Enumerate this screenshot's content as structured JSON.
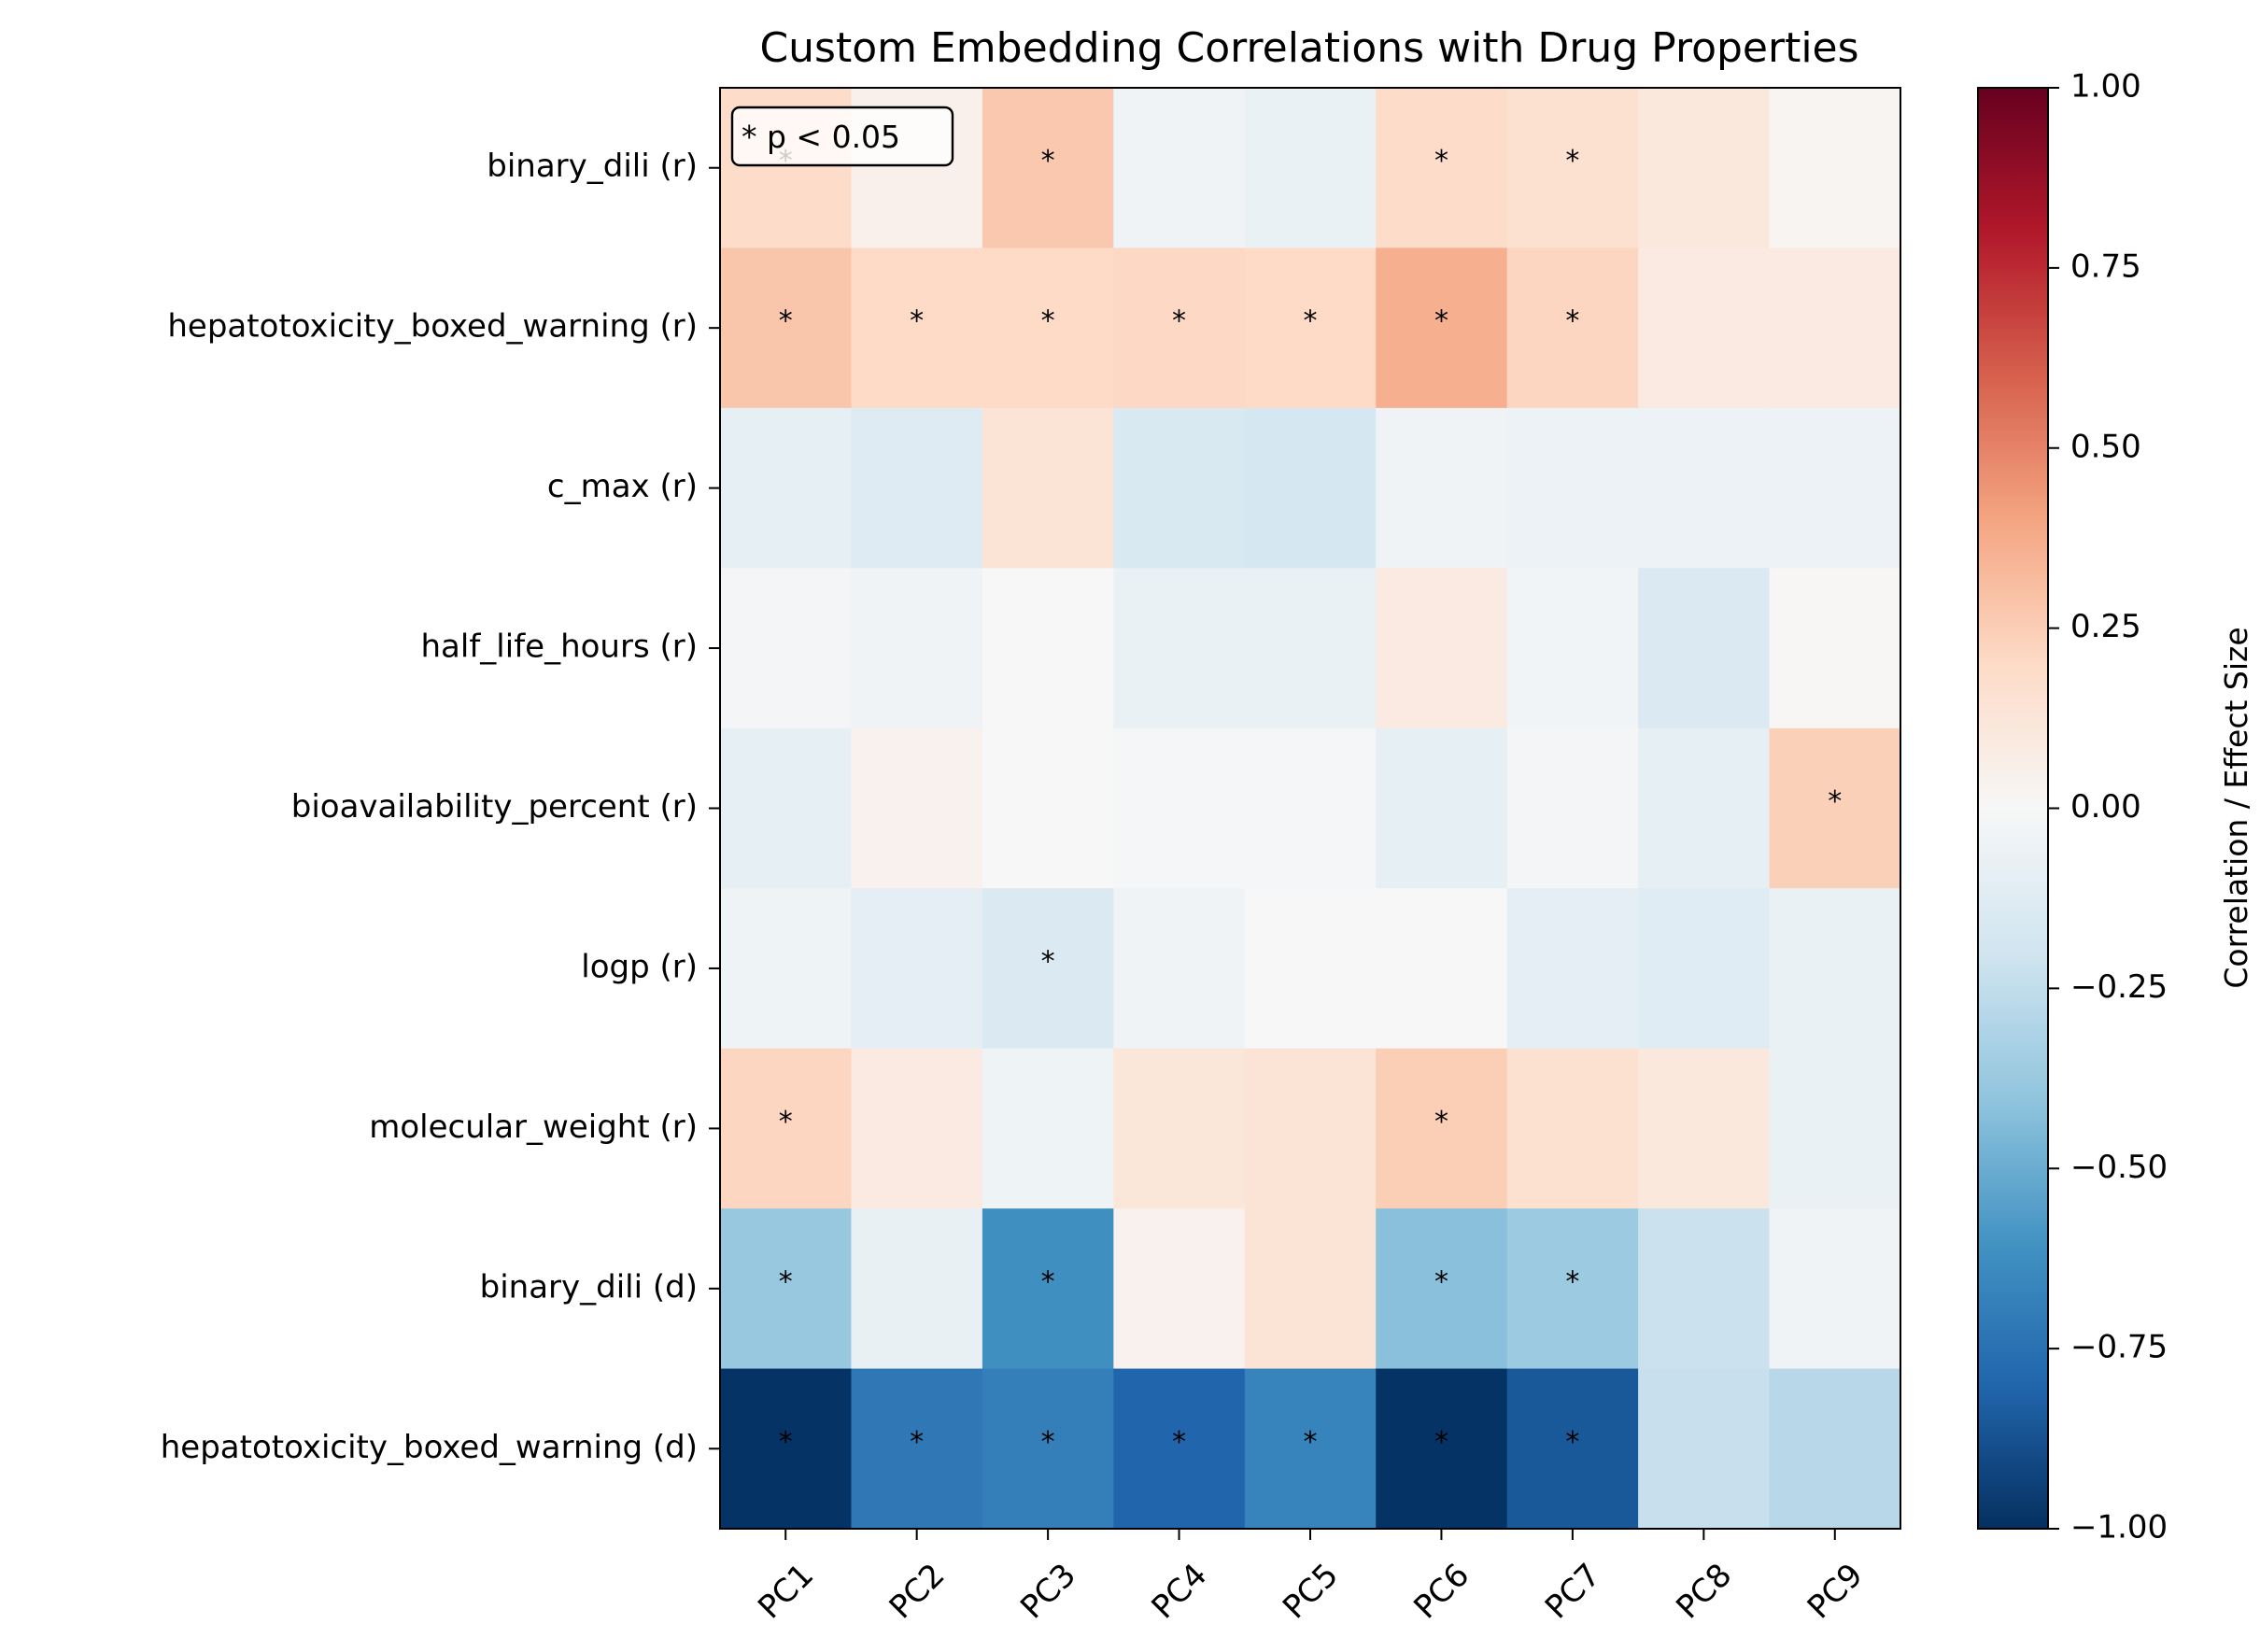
{
  "chart_data": {
    "type": "heatmap",
    "title": "Custom Embedding Correlations with Drug Properties",
    "columns": [
      "PC1",
      "PC2",
      "PC3",
      "PC4",
      "PC5",
      "PC6",
      "PC7",
      "PC8",
      "PC9"
    ],
    "rows": [
      "binary_dili (r)",
      "hepatotoxicity_boxed_warning (r)",
      "c_max (r)",
      "half_life_hours (r)",
      "bioavailability_percent (r)",
      "logp (r)",
      "molecular_weight (r)",
      "binary_dili (d)",
      "hepatotoxicity_boxed_warning (d)"
    ],
    "values": [
      [
        0.19,
        0.05,
        0.27,
        -0.04,
        -0.07,
        0.19,
        0.16,
        0.11,
        0.02
      ],
      [
        0.28,
        0.2,
        0.2,
        0.21,
        0.2,
        0.36,
        0.22,
        0.09,
        0.09
      ],
      [
        -0.09,
        -0.13,
        0.14,
        -0.16,
        -0.18,
        -0.04,
        -0.06,
        -0.06,
        -0.06
      ],
      [
        -0.02,
        -0.04,
        0.0,
        -0.07,
        -0.07,
        0.09,
        -0.03,
        -0.15,
        0.01
      ],
      [
        -0.09,
        0.04,
        0.0,
        -0.01,
        -0.01,
        -0.09,
        -0.02,
        -0.09,
        0.24
      ],
      [
        -0.05,
        -0.1,
        -0.15,
        -0.04,
        0.0,
        0.0,
        -0.1,
        -0.12,
        -0.07
      ],
      [
        0.22,
        0.09,
        -0.05,
        0.12,
        0.14,
        0.25,
        0.16,
        0.11,
        -0.07
      ],
      [
        -0.38,
        -0.08,
        -0.62,
        0.04,
        0.14,
        -0.42,
        -0.37,
        -0.22,
        -0.04
      ],
      [
        -0.99,
        -0.72,
        -0.69,
        -0.8,
        -0.67,
        -0.99,
        -0.85,
        -0.23,
        -0.28
      ]
    ],
    "significant": [
      [
        1,
        0,
        1,
        0,
        0,
        1,
        1,
        0,
        0
      ],
      [
        1,
        1,
        1,
        1,
        1,
        1,
        1,
        0,
        0
      ],
      [
        0,
        0,
        0,
        0,
        0,
        0,
        0,
        0,
        0
      ],
      [
        0,
        0,
        0,
        0,
        0,
        0,
        0,
        0,
        0
      ],
      [
        0,
        0,
        0,
        0,
        0,
        0,
        0,
        0,
        1
      ],
      [
        0,
        0,
        1,
        0,
        0,
        0,
        0,
        0,
        0
      ],
      [
        1,
        0,
        0,
        0,
        0,
        1,
        0,
        0,
        0
      ],
      [
        1,
        0,
        1,
        0,
        0,
        1,
        1,
        0,
        0
      ],
      [
        1,
        1,
        1,
        1,
        1,
        1,
        1,
        0,
        0
      ]
    ],
    "significance_marker": "*",
    "legend_text": "* p < 0.05",
    "legend_position": "top-left",
    "colorbar": {
      "label": "Correlation / Effect Size",
      "range": [
        -1.0,
        1.0
      ],
      "ticks": [
        "1.00",
        "0.75",
        "0.50",
        "0.25",
        "0.00",
        "−0.25",
        "−0.50",
        "−0.75",
        "−1.00"
      ],
      "colormap": "RdBu_r",
      "color_stops": [
        "#053061",
        "#2166ac",
        "#4393c3",
        "#92c5de",
        "#d1e5f0",
        "#f7f7f7",
        "#fddbc7",
        "#f4a582",
        "#d6604d",
        "#b2182b",
        "#67001f"
      ]
    }
  }
}
